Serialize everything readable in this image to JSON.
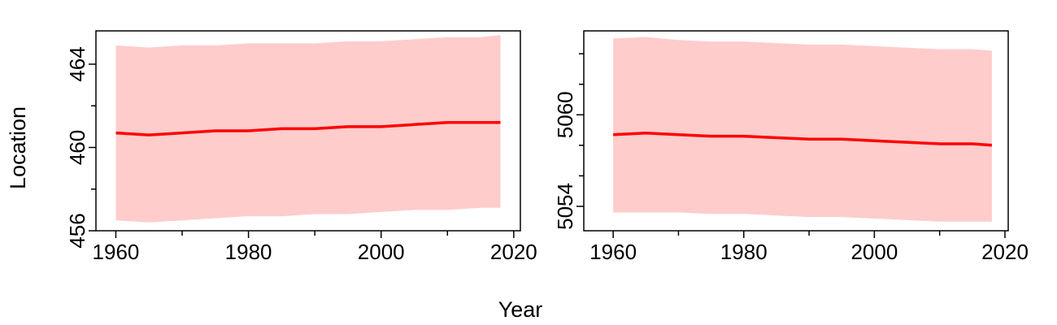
{
  "figure": {
    "ylabel": "Location",
    "xlabel": "Year"
  },
  "colors": {
    "line": "#ff0000",
    "band": "#ffcccc",
    "axis": "#000000",
    "background": "#ffffff"
  },
  "chart_data": [
    {
      "type": "line",
      "panel": "left",
      "xlim": [
        1957,
        2021
      ],
      "ylim": [
        456,
        465.6
      ],
      "xticks": [
        1960,
        1970,
        1980,
        1990,
        2000,
        2010,
        2020
      ],
      "xtick_labels": [
        "1960",
        "1980",
        "2000",
        "2020"
      ],
      "yticks": [
        456,
        458,
        460,
        462,
        464
      ],
      "ytick_labels": [
        "456",
        "460",
        "464"
      ],
      "series": [
        {
          "x": [
            1960,
            1965,
            1970,
            1975,
            1980,
            1985,
            1990,
            1995,
            2000,
            2005,
            2010,
            2015,
            2018
          ],
          "values": [
            460.7,
            460.6,
            460.7,
            460.8,
            460.8,
            460.9,
            460.9,
            461.0,
            461.0,
            461.1,
            461.2,
            461.2,
            461.2
          ],
          "lower": [
            456.5,
            456.4,
            456.5,
            456.6,
            456.7,
            456.7,
            456.8,
            456.8,
            456.9,
            457.0,
            457.0,
            457.1,
            457.1
          ],
          "upper": [
            464.9,
            464.8,
            464.9,
            464.9,
            465.0,
            465.0,
            465.0,
            465.1,
            465.1,
            465.2,
            465.3,
            465.3,
            465.4
          ]
        }
      ]
    },
    {
      "type": "line",
      "panel": "right",
      "xlim": [
        1955.5,
        2020.5
      ],
      "ylim": [
        5052.4,
        5065.5
      ],
      "xticks": [
        1960,
        1970,
        1980,
        1990,
        2000,
        2010,
        2020
      ],
      "xtick_labels": [
        "1960",
        "1980",
        "2000",
        "2020"
      ],
      "yticks": [
        5052,
        5054,
        5056,
        5058,
        5060,
        5062,
        5064
      ],
      "ytick_labels": [
        "5054",
        "5060"
      ],
      "series": [
        {
          "x": [
            1960,
            1965,
            1970,
            1975,
            1980,
            1985,
            1990,
            1995,
            2000,
            2005,
            2010,
            2015,
            2018
          ],
          "values": [
            5058.7,
            5058.8,
            5058.7,
            5058.6,
            5058.6,
            5058.5,
            5058.4,
            5058.4,
            5058.3,
            5058.2,
            5058.1,
            5058.1,
            5058.0
          ],
          "lower": [
            5053.6,
            5053.6,
            5053.6,
            5053.5,
            5053.5,
            5053.4,
            5053.3,
            5053.3,
            5053.2,
            5053.1,
            5053.0,
            5053.0,
            5053.0
          ],
          "upper": [
            5065.0,
            5065.1,
            5064.9,
            5064.8,
            5064.8,
            5064.7,
            5064.6,
            5064.6,
            5064.5,
            5064.4,
            5064.3,
            5064.3,
            5064.2
          ]
        }
      ]
    }
  ]
}
